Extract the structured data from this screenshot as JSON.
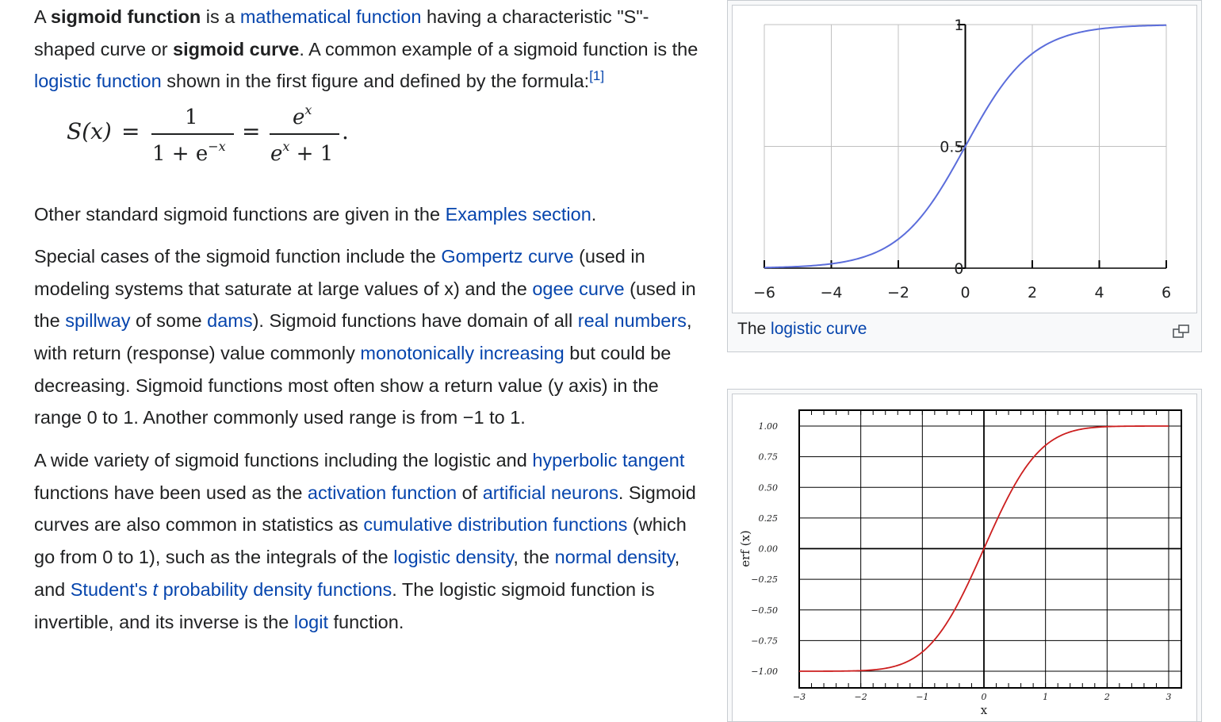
{
  "article": {
    "p1": [
      {
        "t": "A "
      },
      {
        "t": "sigmoid function",
        "b": true
      },
      {
        "t": " is a "
      },
      {
        "t": "mathematical function",
        "link": true
      },
      {
        "t": " having a characteristic \"S\"-shaped curve or "
      },
      {
        "t": "sigmoid curve",
        "b": true
      },
      {
        "t": ". A common example of a sigmoid function is the "
      },
      {
        "t": "logistic function",
        "link": true
      },
      {
        "t": " shown in the first figure and defined by the formula:"
      },
      {
        "t": "[1]",
        "link": true,
        "sup": true
      }
    ],
    "formula": {
      "lhs": "S(x)",
      "eq1": "=",
      "num1": "1",
      "den1_a": "1 + e",
      "den1_sup": "−x",
      "eq2": "=",
      "num2_base": "e",
      "num2_sup": "x",
      "den2_base": "e",
      "den2_sup": "x",
      "den2_rest": " + 1",
      "period": "."
    },
    "p2": [
      {
        "t": "Other standard sigmoid functions are given in the "
      },
      {
        "t": "Examples section",
        "link": true
      },
      {
        "t": "."
      }
    ],
    "p3": [
      {
        "t": "Special cases of the sigmoid function include the "
      },
      {
        "t": "Gompertz curve",
        "link": true
      },
      {
        "t": " (used in modeling systems that saturate at large values of x) and the "
      },
      {
        "t": "ogee curve",
        "link": true
      },
      {
        "t": " (used in the "
      },
      {
        "t": "spillway",
        "link": true
      },
      {
        "t": " of some "
      },
      {
        "t": "dams",
        "link": true
      },
      {
        "t": "). Sigmoid functions have domain of all "
      },
      {
        "t": "real numbers",
        "link": true
      },
      {
        "t": ", with return (response) value commonly "
      },
      {
        "t": "monotonically increasing",
        "link": true
      },
      {
        "t": " but could be decreasing. Sigmoid functions most often show a return value (y axis) in the range 0 to 1. Another commonly used range is from −1 to 1."
      }
    ],
    "p4": [
      {
        "t": "A wide variety of sigmoid functions including the logistic and "
      },
      {
        "t": "hyperbolic tangent",
        "link": true
      },
      {
        "t": " functions have been used as the "
      },
      {
        "t": "activation function",
        "link": true
      },
      {
        "t": " of "
      },
      {
        "t": "artificial neurons",
        "link": true
      },
      {
        "t": ". Sigmoid curves are also common in statistics as "
      },
      {
        "t": "cumulative distribution functions",
        "link": true
      },
      {
        "t": " (which go from 0 to 1), such as the integrals of the "
      },
      {
        "t": "logistic density",
        "link": true
      },
      {
        "t": ", the "
      },
      {
        "t": "normal density",
        "link": true
      },
      {
        "t": ", and "
      },
      {
        "t": "Student's ",
        "link": true
      },
      {
        "t": "t",
        "link": true,
        "i": true
      },
      {
        "t": " probability density functions",
        "link": true
      },
      {
        "t": ". The logistic sigmoid function is invertible, and its inverse is the "
      },
      {
        "t": "logit",
        "link": true
      },
      {
        "t": " function."
      }
    ]
  },
  "figure1": {
    "caption_prefix": "The ",
    "caption_link": "logistic curve",
    "enlarge_icon": "enlarge-icon"
  },
  "colors": {
    "link": "#0645ad",
    "logistic_curve": "#5b6ddb",
    "erf_curve": "#cc1f1f"
  },
  "chart_data": [
    {
      "type": "line",
      "function": "logistic",
      "x_ticks": [
        "−6",
        "−4",
        "−2",
        "0",
        "2",
        "4",
        "6"
      ],
      "y_ticks": [
        "1",
        "0.5",
        "0"
      ],
      "xlim": [
        -6,
        6
      ],
      "ylim": [
        0,
        1
      ],
      "grid": true,
      "series": [
        {
          "x": [
            -6,
            -5,
            -4,
            -3,
            -2,
            -1,
            0,
            1,
            2,
            3,
            4,
            5,
            6
          ],
          "y": [
            0.0025,
            0.0067,
            0.018,
            0.047,
            0.119,
            0.269,
            0.5,
            0.731,
            0.881,
            0.953,
            0.982,
            0.9933,
            0.9975
          ]
        }
      ]
    },
    {
      "type": "line",
      "function": "erf",
      "x_ticks": [
        "−3",
        "−2",
        "−1",
        "0",
        "1",
        "2",
        "3"
      ],
      "y_ticks": [
        "1.00",
        "0.75",
        "0.50",
        "0.25",
        "0.00",
        "−0.25",
        "−0.50",
        "−0.75",
        "−1.00"
      ],
      "xlabel": "x",
      "ylabel": "erf (x)",
      "xlim": [
        -3,
        3
      ],
      "ylim": [
        -1,
        1
      ],
      "grid": true,
      "series": [
        {
          "x": [
            -3,
            -2.5,
            -2,
            -1.5,
            -1,
            -0.5,
            0,
            0.5,
            1,
            1.5,
            2,
            2.5,
            3
          ],
          "y": [
            -0.99998,
            -0.9996,
            -0.9953,
            -0.9661,
            -0.8427,
            -0.5205,
            0,
            0.5205,
            0.8427,
            0.9661,
            0.9953,
            0.9996,
            0.99998
          ]
        }
      ]
    }
  ]
}
